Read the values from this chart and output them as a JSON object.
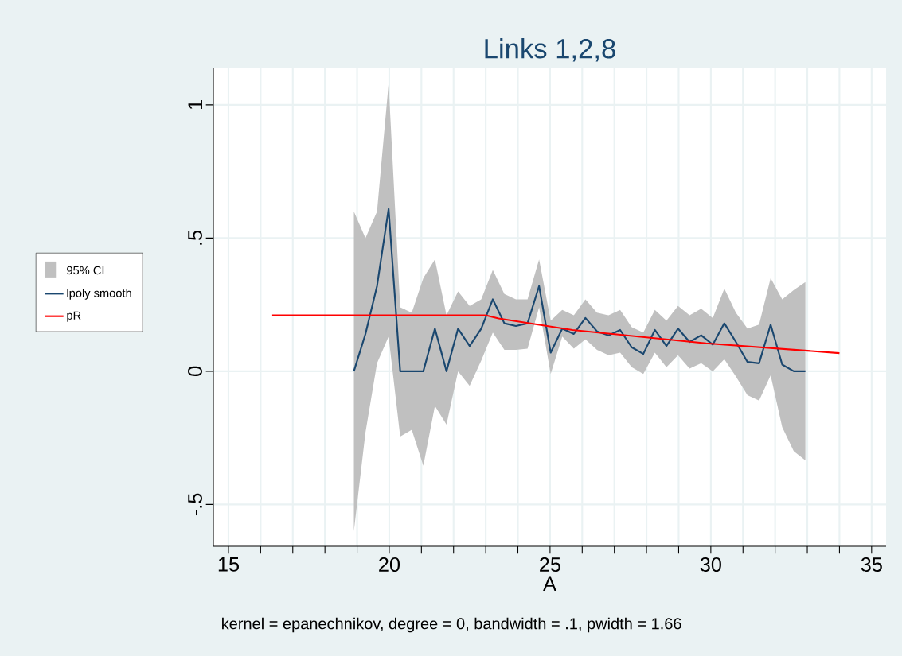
{
  "chart_data": {
    "type": "line",
    "title": "Links 1,2,8",
    "xlabel": "A",
    "annotations": [
      "kernel = epanechnikov, degree = 0, bandwidth = .1, pwidth = 1.66",
      "95% CI"
    ],
    "xlim": [
      14.53,
      35.45
    ],
    "ylim": [
      -0.657,
      1.14
    ],
    "xticks": [
      15,
      {
        "value": 16,
        "label": null
      },
      {
        "value": 17,
        "label": null
      },
      {
        "value": 18,
        "label": null
      },
      {
        "value": 19,
        "label": null
      },
      20,
      {
        "value": 21,
        "label": null
      },
      {
        "value": 22,
        "label": null
      },
      {
        "value": 23,
        "label": null
      },
      {
        "value": 24,
        "label": null
      },
      25,
      {
        "value": 26,
        "label": null
      },
      {
        "value": 27,
        "label": null
      },
      {
        "value": 28,
        "label": null
      },
      {
        "value": 29,
        "label": null
      },
      30,
      {
        "value": 31,
        "label": null
      },
      {
        "value": 32,
        "label": null
      },
      {
        "value": 33,
        "label": null
      },
      {
        "value": 34,
        "label": null
      },
      35
    ],
    "yticks": [
      {
        "value": -0.5,
        "label": "-.5"
      },
      0,
      {
        "value": 0.5,
        "label": ".5"
      },
      1
    ],
    "grid": true,
    "legend": "left",
    "marker": "none",
    "line_style": "solid",
    "series": [
      {
        "name": "lpoly smooth",
        "color": "#1a476f",
        "x": [
          18.9,
          19.26,
          19.62,
          19.98,
          20.34,
          20.7,
          21.06,
          21.42,
          21.78,
          22.14,
          22.5,
          22.86,
          23.22,
          23.58,
          23.94,
          24.3,
          24.66,
          25.02,
          25.38,
          25.74,
          26.1,
          26.46,
          26.82,
          27.18,
          27.54,
          27.9,
          28.26,
          28.62,
          28.98,
          29.34,
          29.7,
          30.06,
          30.42,
          30.78,
          31.14,
          31.5,
          31.86,
          32.22,
          32.58,
          32.94
        ],
        "values": [
          0,
          0.14,
          0.32,
          0.61,
          0,
          0,
          0,
          0.16,
          0,
          0.16,
          0.095,
          0.16,
          0.27,
          0.18,
          0.17,
          0.18,
          0.32,
          0.07,
          0.16,
          0.14,
          0.2,
          0.15,
          0.135,
          0.155,
          0.09,
          0.065,
          0.155,
          0.095,
          0.16,
          0.11,
          0.135,
          0.1,
          0.18,
          0.11,
          0.035,
          0.03,
          0.175,
          0.025,
          0,
          0
        ],
        "lower": [
          -0.6,
          -0.23,
          0.03,
          0.13,
          -0.245,
          -0.22,
          -0.355,
          -0.13,
          -0.2,
          0.0,
          -0.055,
          0.04,
          0.145,
          0.08,
          0.08,
          0.085,
          0.24,
          -0.01,
          0.13,
          0.085,
          0.12,
          0.08,
          0.06,
          0.07,
          0.015,
          -0.01,
          0.07,
          0.015,
          0.06,
          0.01,
          0.03,
          0.0,
          0.045,
          -0.02,
          -0.09,
          -0.11,
          -0.015,
          -0.21,
          -0.3,
          -0.335
        ],
        "upper": [
          0.6,
          0.5,
          0.6,
          1.08,
          0.24,
          0.22,
          0.35,
          0.42,
          0.21,
          0.3,
          0.245,
          0.27,
          0.38,
          0.29,
          0.27,
          0.27,
          0.42,
          0.19,
          0.23,
          0.21,
          0.27,
          0.22,
          0.21,
          0.23,
          0.165,
          0.145,
          0.23,
          0.19,
          0.245,
          0.21,
          0.235,
          0.2,
          0.31,
          0.22,
          0.16,
          0.175,
          0.35,
          0.27,
          0.305,
          0.335
        ]
      },
      {
        "name": "pR",
        "color": "#ff0000",
        "x": [
          16.36,
          23.0,
          23.4,
          25.7,
          29.85,
          34.0
        ],
        "values": [
          0.21,
          0.21,
          0.198,
          0.155,
          0.105,
          0.068
        ]
      }
    ]
  }
}
